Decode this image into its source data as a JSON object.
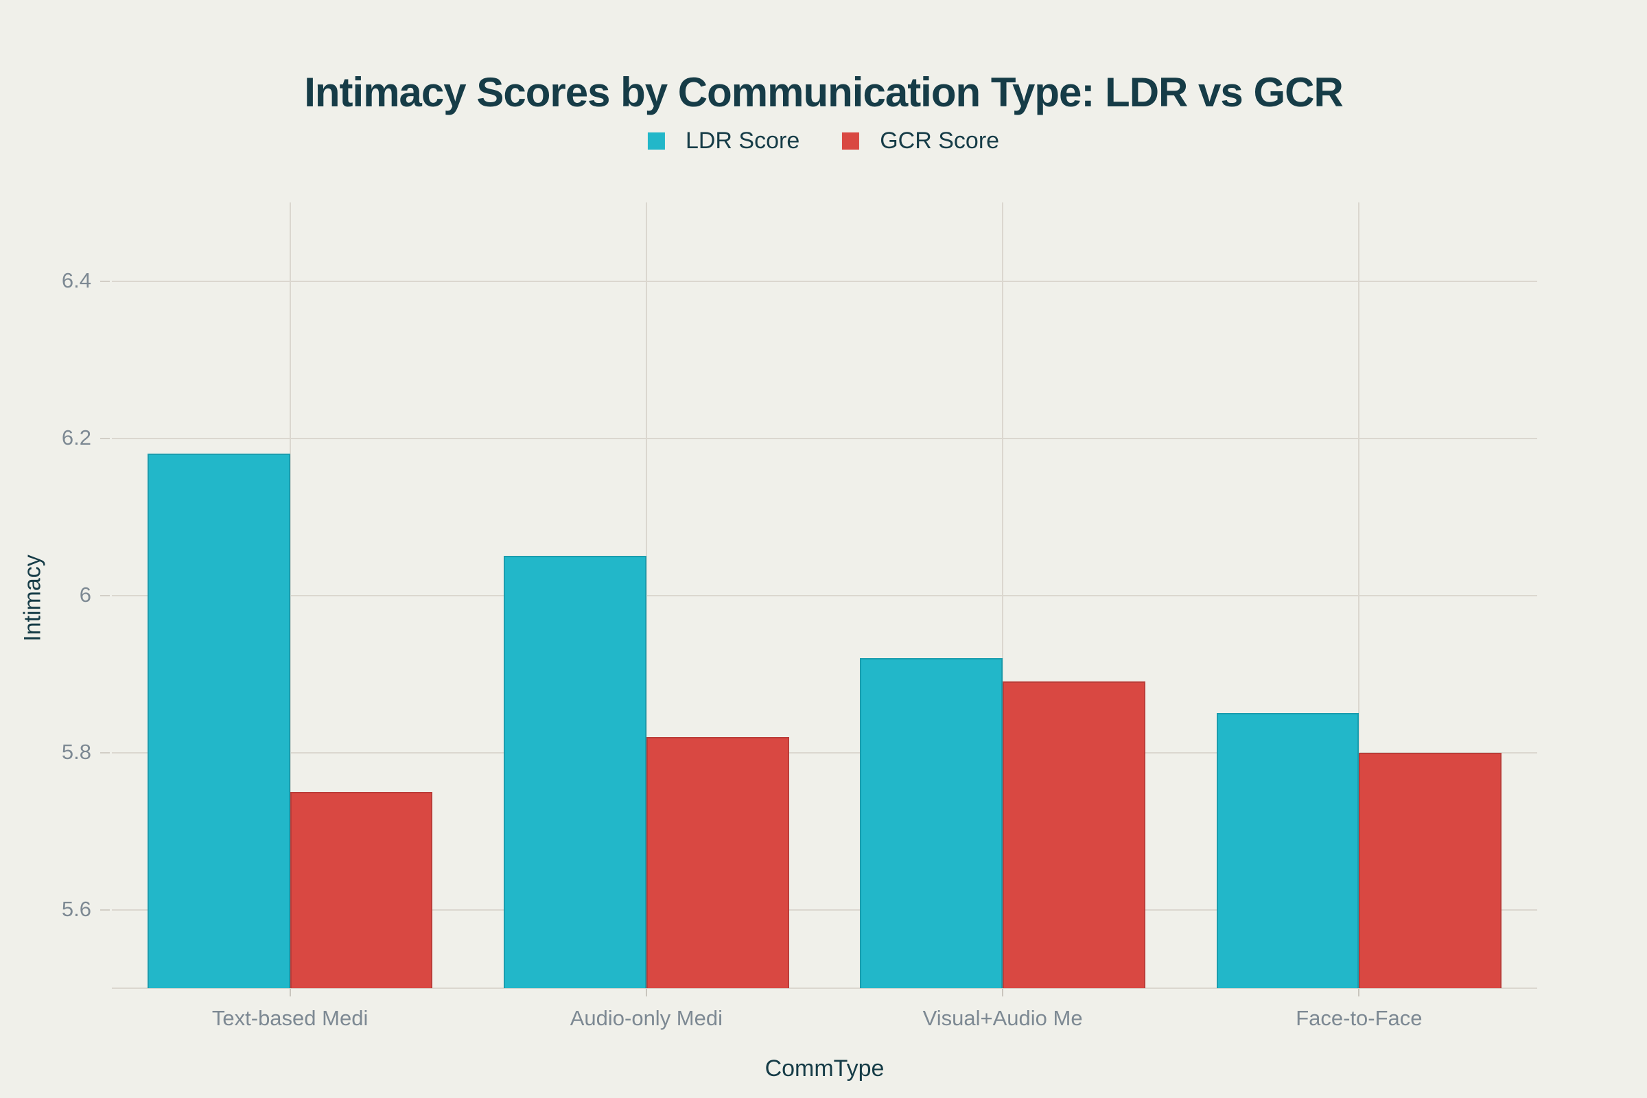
{
  "title": "Intimacy Scores by Communication Type: LDR vs GCR",
  "legend": {
    "items": [
      {
        "label": "LDR Score",
        "color": "#22b7c9"
      },
      {
        "label": "GCR Score",
        "color": "#d94842"
      }
    ]
  },
  "colors": {
    "background": "#f0f0ea",
    "gridline": "#dbd7cf",
    "ldr_bar": "#22b7c9",
    "gcr_bar": "#d94842",
    "heading_text": "#163c47",
    "tick_text": "#7d8993"
  },
  "chart_data": {
    "type": "bar",
    "title": "Intimacy Scores by Communication Type: LDR vs GCR",
    "categories": [
      "Text-based Medi",
      "Audio-only Medi",
      "Visual+Audio Me",
      "Face-to-Face"
    ],
    "series": [
      {
        "name": "LDR Score",
        "color": "#22b7c9",
        "values": [
          6.18,
          6.05,
          5.92,
          5.85
        ]
      },
      {
        "name": "GCR Score",
        "color": "#d94842",
        "values": [
          5.75,
          5.82,
          5.89,
          5.8
        ]
      }
    ],
    "xlabel": "CommType",
    "ylabel": "Intimacy",
    "ylim": [
      5.5,
      6.5
    ],
    "yticks": [
      5.6,
      5.8,
      6,
      6.2,
      6.4
    ],
    "grid": true,
    "legend_position": "top-center",
    "bar_group_width_fraction": 0.8
  }
}
